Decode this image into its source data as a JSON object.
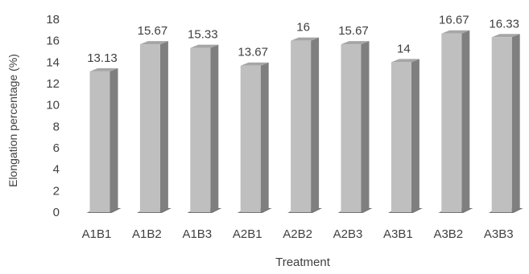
{
  "chart_data": {
    "type": "bar",
    "title": "",
    "xlabel": "Treatment",
    "ylabel": "Elongation percentage (%)",
    "ylim": [
      0,
      18
    ],
    "yticks": [
      0,
      2,
      4,
      6,
      8,
      10,
      12,
      14,
      16,
      18
    ],
    "ytick_labels": [
      "0",
      "2",
      "4",
      "6",
      "8",
      "10",
      "12",
      "14",
      "16",
      "18"
    ],
    "grid": false,
    "legend": "none",
    "style": "3d-column",
    "colors": {
      "bar_face": "#bfbfbf",
      "bar_side": "#7f7f7f",
      "bar_top": "#a6a6a6",
      "bar_shadow": "#595959",
      "axis_text": "#404040"
    },
    "categories": [
      "A1B1",
      "A1B2",
      "A1B3",
      "A2B1",
      "A2B2",
      "A2B3",
      "A3B1",
      "A3B2",
      "A3B3"
    ],
    "values": [
      13.13,
      15.67,
      15.33,
      13.67,
      16,
      15.67,
      14,
      16.67,
      16.33
    ],
    "data_labels": [
      "13.13",
      "15.67",
      "15.33",
      "13.67",
      "16",
      "15.67",
      "14",
      "16.67",
      "16.33"
    ]
  }
}
